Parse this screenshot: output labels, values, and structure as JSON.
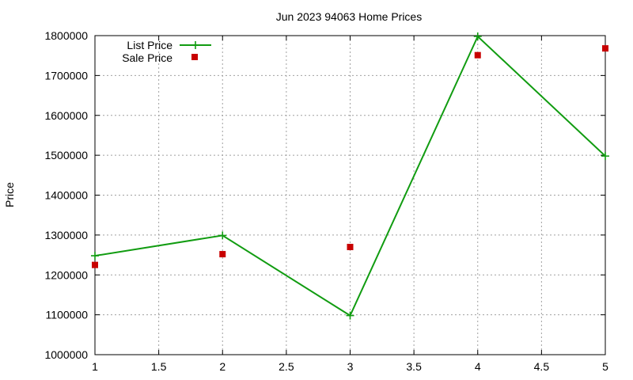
{
  "chart_data": {
    "type": "line",
    "title": "Jun 2023 94063 Home Prices",
    "xlabel": "",
    "ylabel": "Price",
    "xlim": [
      1,
      5
    ],
    "ylim": [
      1000000,
      1800000
    ],
    "x_ticks": [
      "1",
      "1.5",
      "2",
      "2.5",
      "3",
      "3.5",
      "4",
      "4.5",
      "5"
    ],
    "y_ticks": [
      "1000000",
      "1100000",
      "1200000",
      "1300000",
      "1400000",
      "1500000",
      "1600000",
      "1700000",
      "1800000"
    ],
    "grid": true,
    "legend_position": "top-left",
    "series": [
      {
        "name": "List Price",
        "style": "line+cross",
        "color": "#119c11",
        "x": [
          1,
          2,
          3,
          4,
          5
        ],
        "y": [
          1248000,
          1299000,
          1098000,
          1798000,
          1498000
        ]
      },
      {
        "name": "Sale Price",
        "style": "square-points",
        "color": "#c80000",
        "x": [
          1,
          2,
          3,
          4,
          5
        ],
        "y": [
          1225000,
          1252000,
          1270000,
          1751000,
          1768000
        ]
      }
    ]
  }
}
